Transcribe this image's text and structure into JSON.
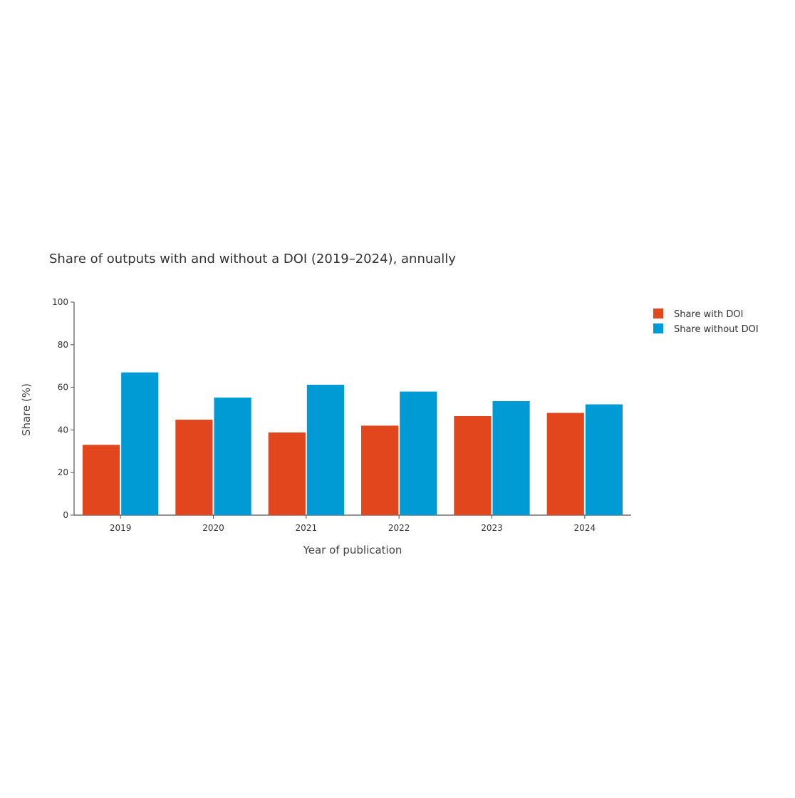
{
  "chart_data": {
    "type": "bar",
    "title": "Share of outputs with and without a DOI (2019–2024), annually",
    "xlabel": "Year of publication",
    "ylabel": "Share (%)",
    "categories": [
      "2019",
      "2020",
      "2021",
      "2022",
      "2023",
      "2024"
    ],
    "ylim": [
      0,
      100
    ],
    "yticks": [
      0,
      20,
      40,
      60,
      80,
      100
    ],
    "grid": false,
    "legend_position": "top-right",
    "series": [
      {
        "name": "Share with DOI",
        "color": "#e2461d",
        "values": [
          33,
          44.8,
          38.8,
          42,
          46.5,
          48
        ]
      },
      {
        "name": "Share without DOI",
        "color": "#009ad4",
        "values": [
          67,
          55.2,
          61.2,
          58,
          53.5,
          52
        ]
      }
    ]
  }
}
